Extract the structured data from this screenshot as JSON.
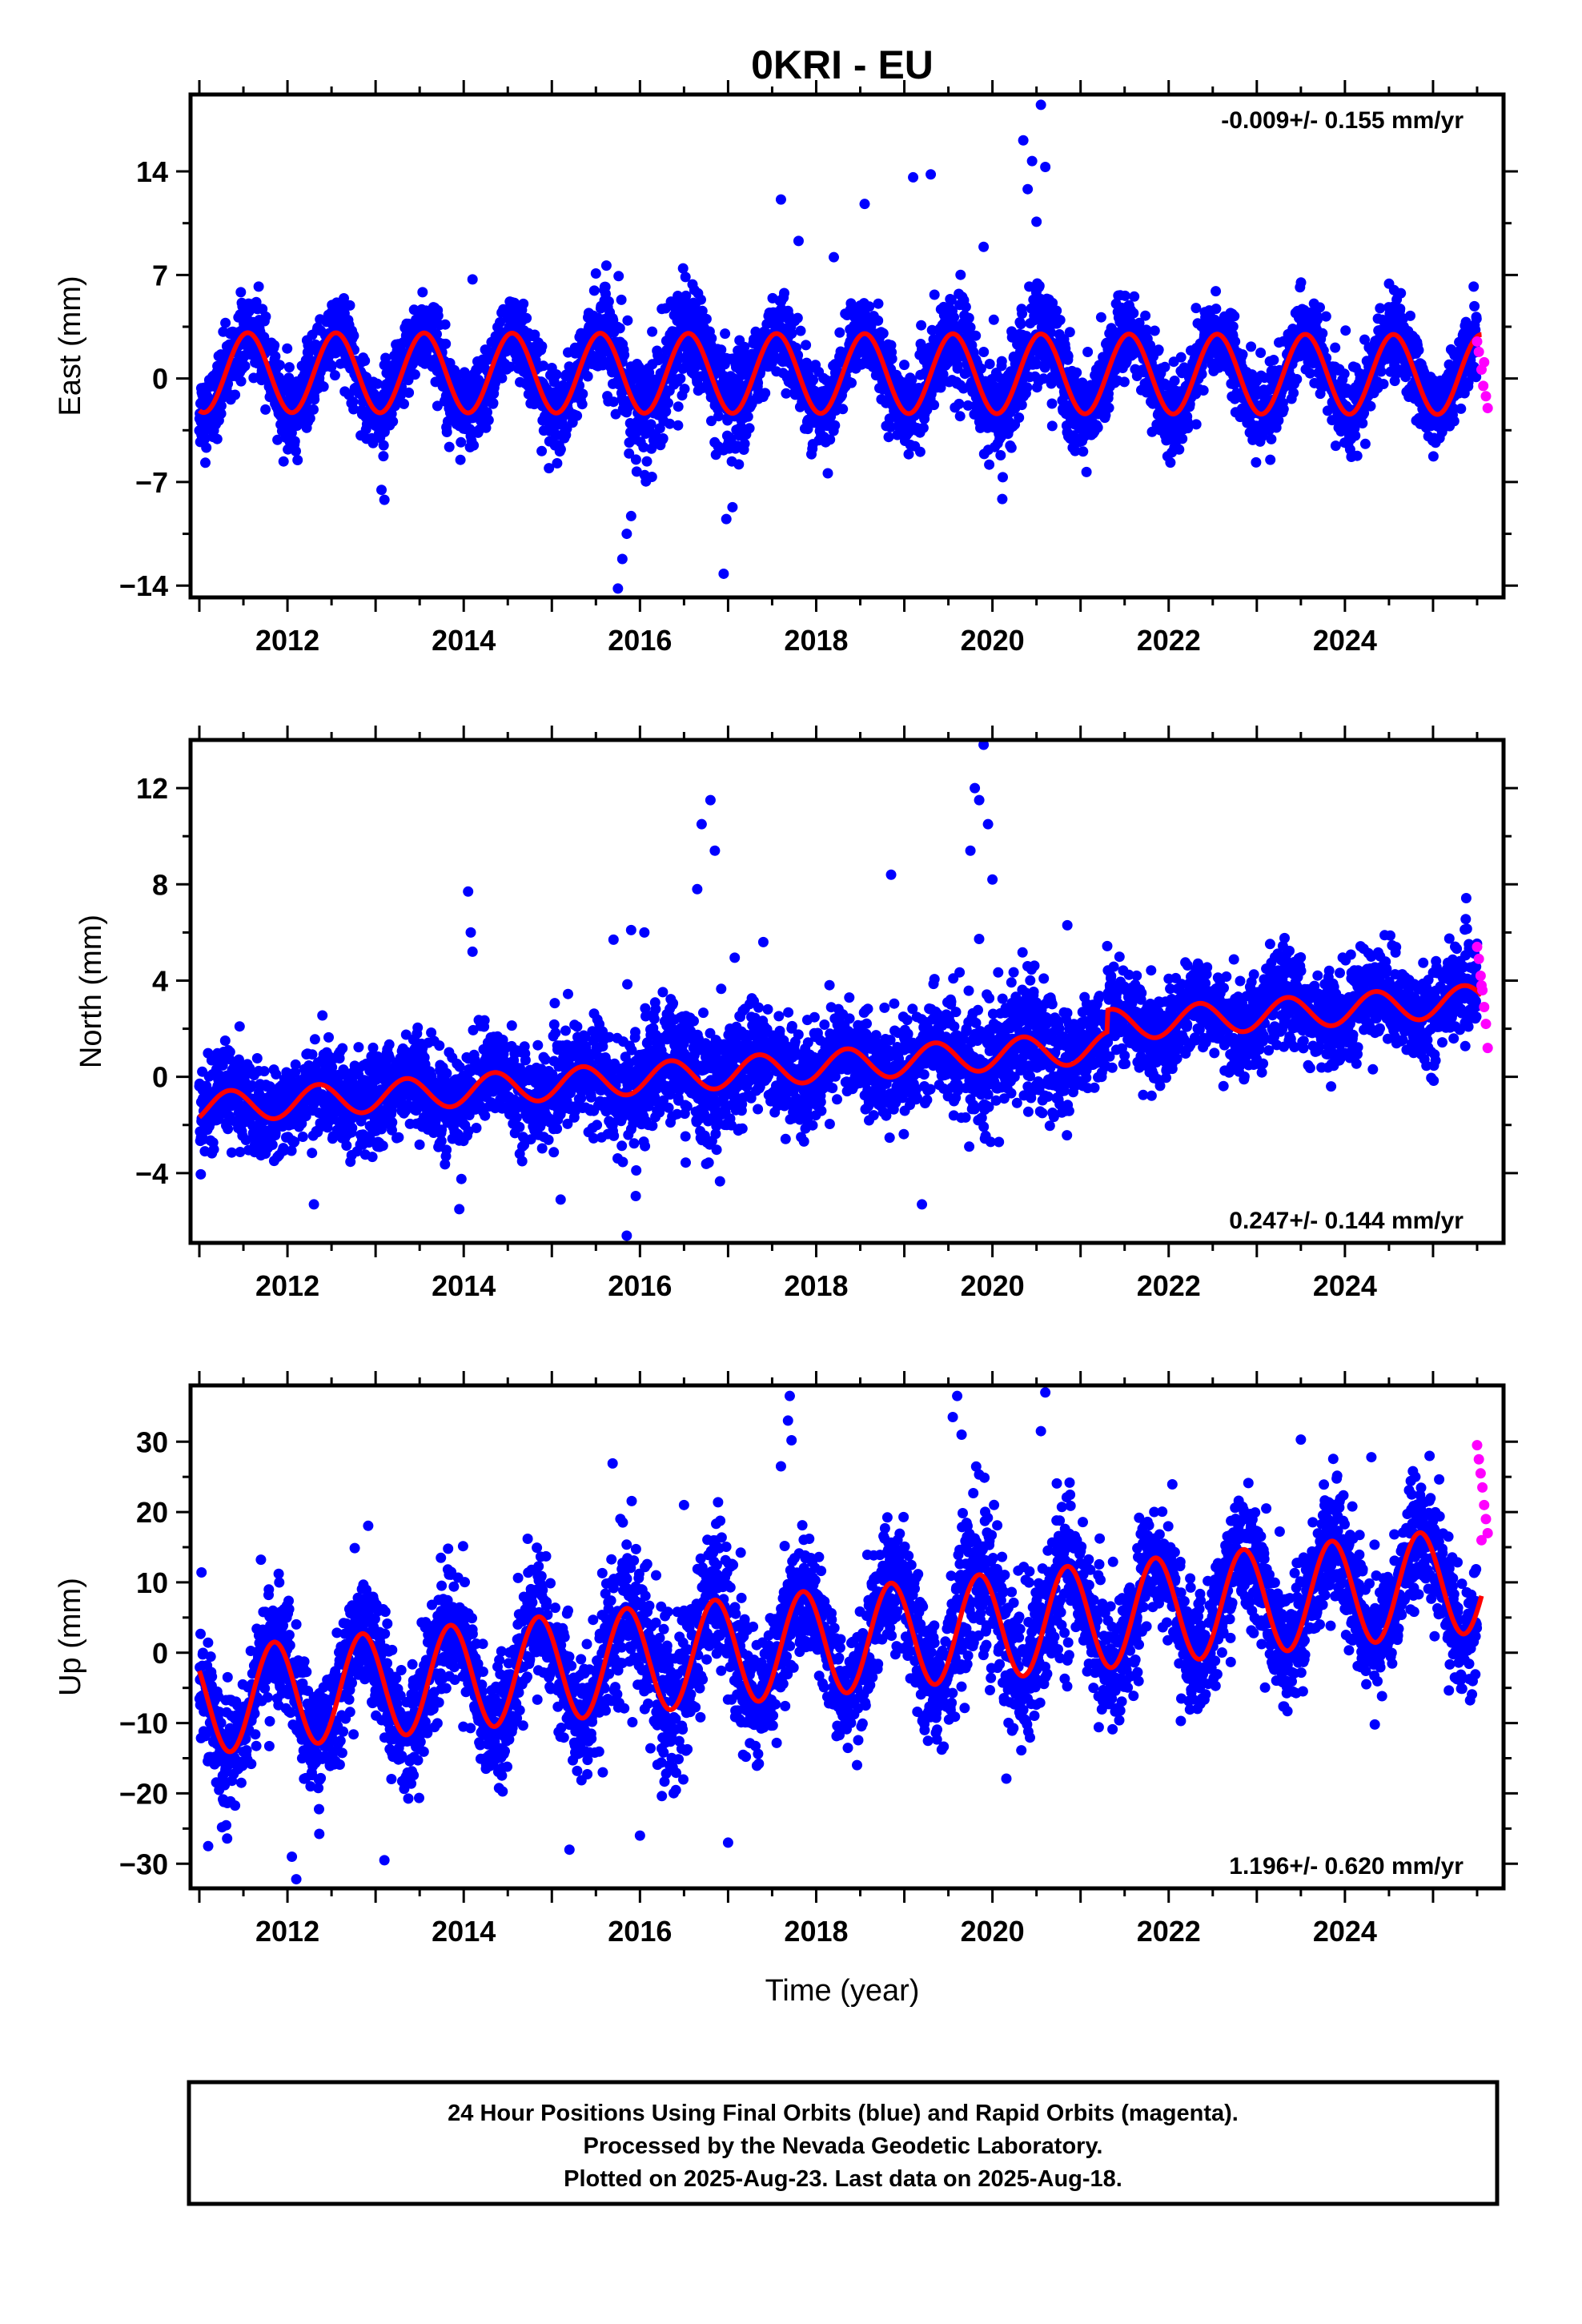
{
  "chart_data": {
    "title": "0KRI - EU",
    "type": "scatter",
    "xlabel": "Time (year)",
    "xlim": [
      2010.9,
      2025.8
    ],
    "x_ticks": [
      2012,
      2014,
      2016,
      2018,
      2020,
      2022,
      2024
    ],
    "series_colors": {
      "final_orbits": "#0000ff",
      "rapid_orbits": "#ff00ff",
      "model_fit": "#ff0000"
    },
    "panels": [
      {
        "component": "east",
        "ylabel": "East (mm)",
        "ylim": [
          -14.8,
          19.2
        ],
        "y_ticks": [
          14,
          7,
          0,
          -7,
          -14
        ],
        "y_tick_labels": [
          "14",
          "7",
          "0",
          "−7",
          "−14"
        ],
        "rate_text": "-0.009+/- 0.155 mm/yr",
        "rate_position": "top-right",
        "model": {
          "slope": -0.009,
          "intercept": 0.4,
          "annual_amp": 2.7,
          "annual_phase_year": 2011.3,
          "semiannual_amp": 0.0,
          "noise_sd": 1.3
        },
        "outliers": [
          {
            "x": 2015.75,
            "y": -14.2
          },
          {
            "x": 2015.8,
            "y": -12.2
          },
          {
            "x": 2015.85,
            "y": -10.5
          },
          {
            "x": 2015.9,
            "y": -9.3
          },
          {
            "x": 2016.95,
            "y": -13.2
          },
          {
            "x": 2016.98,
            "y": -9.5
          },
          {
            "x": 2017.05,
            "y": -8.7
          },
          {
            "x": 2013.1,
            "y": -8.2
          },
          {
            "x": 2017.6,
            "y": 12.1
          },
          {
            "x": 2018.55,
            "y": 11.8
          },
          {
            "x": 2019.1,
            "y": 13.6
          },
          {
            "x": 2019.3,
            "y": 13.8
          },
          {
            "x": 2020.35,
            "y": 16.1
          },
          {
            "x": 2020.45,
            "y": 14.7
          },
          {
            "x": 2020.55,
            "y": 18.5
          },
          {
            "x": 2020.6,
            "y": 14.3
          },
          {
            "x": 2020.4,
            "y": 12.8
          },
          {
            "x": 2020.5,
            "y": 10.6
          },
          {
            "x": 2017.8,
            "y": 9.3
          },
          {
            "x": 2018.2,
            "y": 8.2
          },
          {
            "x": 2019.9,
            "y": 8.9
          },
          {
            "x": 2014.1,
            "y": 6.7
          },
          {
            "x": 2015.5,
            "y": 7.1
          }
        ],
        "rapid_points": [
          {
            "x": 2025.5,
            "y": 2.5
          },
          {
            "x": 2025.52,
            "y": 1.8
          },
          {
            "x": 2025.55,
            "y": 0.6
          },
          {
            "x": 2025.57,
            "y": -0.5
          },
          {
            "x": 2025.6,
            "y": -1.2
          },
          {
            "x": 2025.62,
            "y": -2.0
          },
          {
            "x": 2025.58,
            "y": 1.1
          }
        ]
      },
      {
        "component": "north",
        "ylabel": "North (mm)",
        "ylim": [
          -6.9,
          14.0
        ],
        "y_ticks": [
          12,
          8,
          4,
          0,
          -4
        ],
        "y_tick_labels": [
          "12",
          "8",
          "4",
          "0",
          "−4"
        ],
        "rate_text": "0.247+/- 0.144 mm/yr",
        "rate_position": "bottom-right",
        "model": {
          "slope": 0.247,
          "intercept": -1.3,
          "annual_amp": 0.65,
          "annual_phase_year": 2011.1,
          "semiannual_amp": 0.0,
          "offset_year": 2021.3,
          "offset_mm": 0.9,
          "noise_sd": 0.95
        },
        "outliers": [
          {
            "x": 2014.05,
            "y": 7.7
          },
          {
            "x": 2014.08,
            "y": 6.0
          },
          {
            "x": 2014.1,
            "y": 5.2
          },
          {
            "x": 2016.8,
            "y": 11.5
          },
          {
            "x": 2016.7,
            "y": 10.5
          },
          {
            "x": 2016.85,
            "y": 9.4
          },
          {
            "x": 2016.65,
            "y": 7.8
          },
          {
            "x": 2015.7,
            "y": 5.7
          },
          {
            "x": 2015.9,
            "y": 6.1
          },
          {
            "x": 2016.05,
            "y": 6.0
          },
          {
            "x": 2018.85,
            "y": 8.4
          },
          {
            "x": 2019.9,
            "y": 13.8
          },
          {
            "x": 2019.8,
            "y": 12.0
          },
          {
            "x": 2019.85,
            "y": 11.5
          },
          {
            "x": 2019.95,
            "y": 10.5
          },
          {
            "x": 2019.75,
            "y": 9.4
          },
          {
            "x": 2020.0,
            "y": 8.2
          },
          {
            "x": 2015.85,
            "y": -6.6
          },
          {
            "x": 2012.3,
            "y": -5.3
          },
          {
            "x": 2013.95,
            "y": -5.5
          },
          {
            "x": 2019.2,
            "y": -5.3
          },
          {
            "x": 2015.1,
            "y": -5.1
          },
          {
            "x": 2020.85,
            "y": 6.3
          },
          {
            "x": 2017.4,
            "y": 5.6
          }
        ],
        "rapid_points": [
          {
            "x": 2025.5,
            "y": 5.4
          },
          {
            "x": 2025.52,
            "y": 4.9
          },
          {
            "x": 2025.54,
            "y": 4.2
          },
          {
            "x": 2025.56,
            "y": 3.6
          },
          {
            "x": 2025.58,
            "y": 2.9
          },
          {
            "x": 2025.6,
            "y": 2.2
          },
          {
            "x": 2025.62,
            "y": 1.2
          },
          {
            "x": 2025.55,
            "y": 3.8
          }
        ]
      },
      {
        "component": "up",
        "ylabel": "Up (mm)",
        "ylim": [
          -33.5,
          38.0
        ],
        "y_ticks": [
          30,
          20,
          10,
          0,
          -10,
          -20,
          -30
        ],
        "y_tick_labels": [
          "30",
          "20",
          "10",
          "0",
          "−10",
          "−20",
          "−30"
        ],
        "rate_text": "1.196+/- 0.620 mm/yr",
        "rate_position": "bottom-right",
        "model": {
          "slope": 1.196,
          "intercept": -7.0,
          "annual_amp": 7.5,
          "annual_phase_year": 2011.6,
          "semiannual_amp": 0.0,
          "noise_sd": 4.2
        },
        "outliers": [
          {
            "x": 2017.7,
            "y": 36.5
          },
          {
            "x": 2017.68,
            "y": 33.0
          },
          {
            "x": 2017.72,
            "y": 30.2
          },
          {
            "x": 2017.6,
            "y": 26.5
          },
          {
            "x": 2019.6,
            "y": 36.5
          },
          {
            "x": 2019.55,
            "y": 33.5
          },
          {
            "x": 2019.65,
            "y": 31.0
          },
          {
            "x": 2020.6,
            "y": 37.0
          },
          {
            "x": 2020.55,
            "y": 31.5
          },
          {
            "x": 2023.5,
            "y": 30.3
          },
          {
            "x": 2012.1,
            "y": -32.2
          },
          {
            "x": 2012.05,
            "y": -29.0
          },
          {
            "x": 2013.1,
            "y": -29.5
          },
          {
            "x": 2011.1,
            "y": -27.5
          },
          {
            "x": 2017.0,
            "y": -27.0
          },
          {
            "x": 2015.2,
            "y": -28.0
          },
          {
            "x": 2016.0,
            "y": -26.0
          },
          {
            "x": 2024.3,
            "y": 27.8
          },
          {
            "x": 2024.8,
            "y": 25.0
          },
          {
            "x": 2016.5,
            "y": 21.0
          }
        ],
        "rapid_points": [
          {
            "x": 2025.5,
            "y": 29.5
          },
          {
            "x": 2025.52,
            "y": 27.5
          },
          {
            "x": 2025.54,
            "y": 25.5
          },
          {
            "x": 2025.56,
            "y": 23.5
          },
          {
            "x": 2025.58,
            "y": 21.0
          },
          {
            "x": 2025.6,
            "y": 19.0
          },
          {
            "x": 2025.62,
            "y": 17.0
          },
          {
            "x": 2025.55,
            "y": 16.0
          }
        ]
      }
    ]
  },
  "footer": {
    "line1": "24 Hour Positions Using Final Orbits (blue) and Rapid Orbits (magenta).",
    "line2": "Processed by the Nevada Geodetic Laboratory.",
    "line3": "Plotted on 2025-Aug-23. Last data on 2025-Aug-18."
  }
}
